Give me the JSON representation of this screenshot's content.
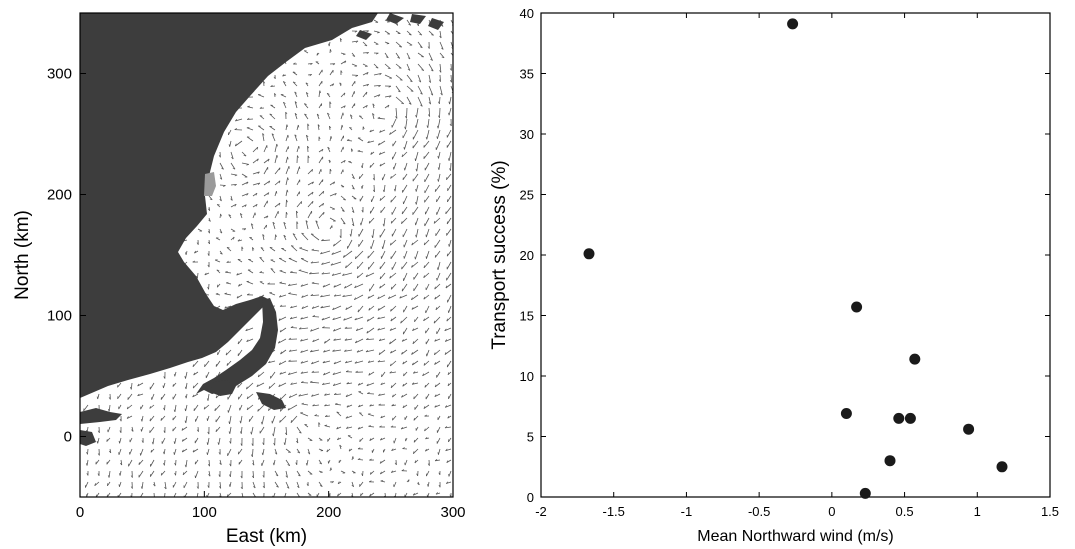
{
  "chart_data": [
    {
      "type": "map",
      "xlabel": "East (km)",
      "ylabel": "North (km)",
      "xlim": [
        0,
        300
      ],
      "ylim": [
        -50,
        350
      ],
      "xticks": [
        0,
        100,
        200,
        300
      ],
      "yticks": [
        0,
        100,
        200,
        300
      ],
      "land_color": "#3d3d3d",
      "water_color": "#ffffff",
      "vector_color": "#555555"
    },
    {
      "type": "scatter",
      "xlabel": "Mean Northward wind (m/s)",
      "ylabel": "Transport success (%)",
      "xlim": [
        -2,
        1.5
      ],
      "ylim": [
        0,
        40
      ],
      "xticks": [
        -2,
        -1.5,
        -1,
        -0.5,
        0,
        0.5,
        1,
        1.5
      ],
      "yticks": [
        0,
        5,
        10,
        15,
        20,
        25,
        30,
        35,
        40
      ],
      "grid": false,
      "marker_color": "#1a1a1a",
      "x": [
        -0.27,
        -1.67,
        0.17,
        0.57,
        0.1,
        0.46,
        0.54,
        0.94,
        0.4,
        1.17,
        0.23
      ],
      "y": [
        39.1,
        20.1,
        15.7,
        11.4,
        6.9,
        6.5,
        6.5,
        5.6,
        3.0,
        2.5,
        0.3
      ]
    }
  ]
}
